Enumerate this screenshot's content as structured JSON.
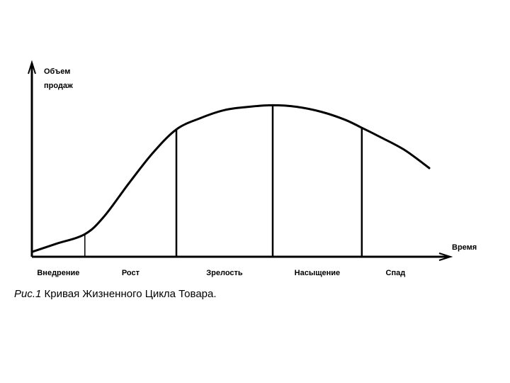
{
  "chart_data": {
    "type": "line",
    "title": "",
    "ylabel_lines": [
      "Объем",
      "продаж"
    ],
    "xlabel": "Время",
    "stages": [
      "Внедрение",
      "Рост",
      "Зрелость",
      "Насыщение",
      "Спад"
    ],
    "stage_boundaries": [
      0.22,
      0.6,
      1.0,
      1.37
    ],
    "x": [
      0.0,
      0.1,
      0.22,
      0.3,
      0.4,
      0.5,
      0.6,
      0.7,
      0.8,
      0.9,
      1.0,
      1.1,
      1.2,
      1.3,
      1.37,
      1.45,
      1.55,
      1.65
    ],
    "values": [
      0.03,
      0.08,
      0.14,
      0.25,
      0.45,
      0.64,
      0.79,
      0.86,
      0.91,
      0.93,
      0.94,
      0.93,
      0.9,
      0.85,
      0.8,
      0.74,
      0.66,
      0.55
    ],
    "xlim": [
      0,
      1.75
    ],
    "ylim": [
      0,
      1.1
    ],
    "grid": false,
    "axis_arrows": true
  },
  "caption": {
    "prefix": "Рис.1",
    "text": "Кривая Жизненного Цикла Товара."
  }
}
